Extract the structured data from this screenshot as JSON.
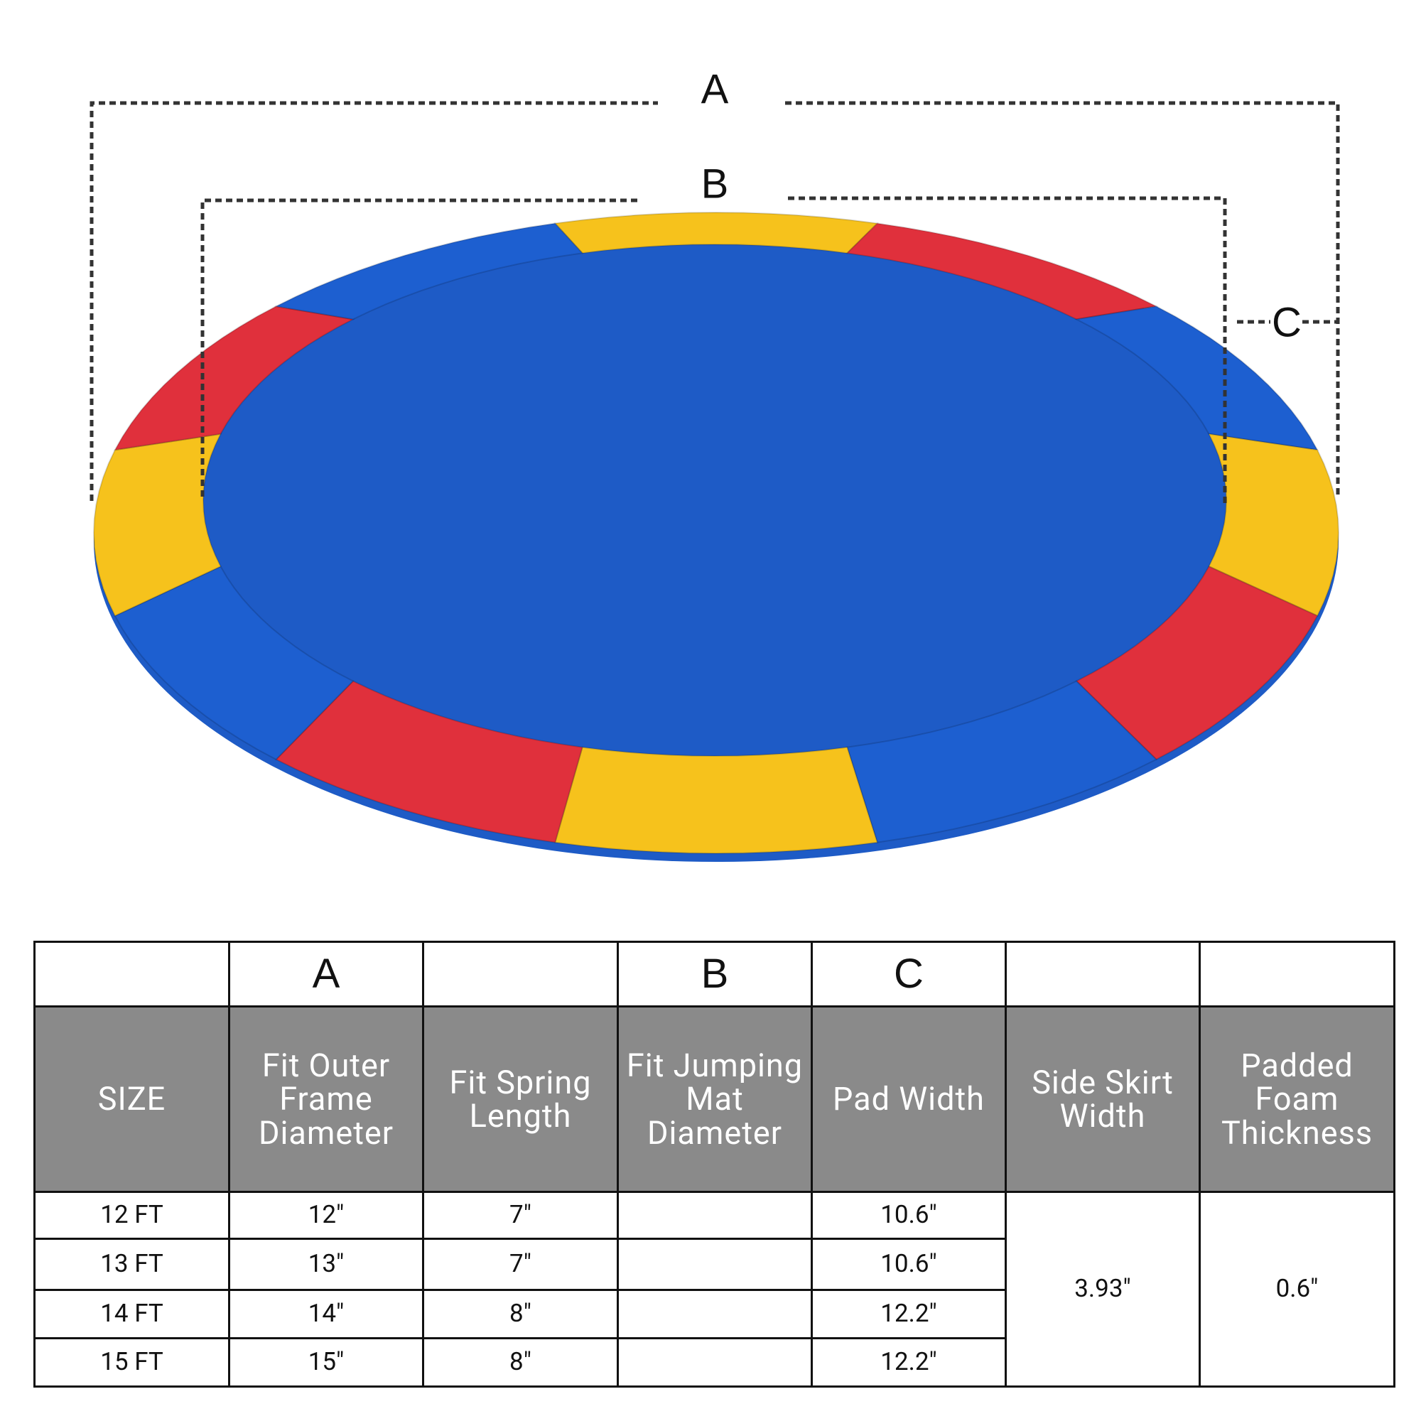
{
  "diagram": {
    "labels": {
      "a": "A",
      "b": "B",
      "c": "C"
    }
  },
  "table": {
    "columns": [
      {
        "label": "SIZE"
      },
      {
        "letter": "A",
        "label": "Fit Outer Frame Diameter"
      },
      {
        "label": "Fit Spring Length"
      },
      {
        "letter": "B",
        "label": "Fit Jumping Mat Diameter"
      },
      {
        "letter": "C",
        "label": "Pad Width"
      },
      {
        "label": "Side Skirt Width"
      },
      {
        "label": "Padded Foam Thickness"
      }
    ],
    "rows": [
      [
        "12 FT",
        "12″",
        "7″",
        null,
        "10.6″"
      ],
      [
        "13 FT",
        "13″",
        "7″",
        null,
        "10.6″"
      ],
      [
        "14 FT",
        "14″",
        "8″",
        null,
        "12.2″"
      ],
      [
        "15 FT",
        "15″",
        "8″",
        null,
        "12.2″"
      ]
    ],
    "merged": [
      "3.93″",
      "0.6″"
    ]
  }
}
